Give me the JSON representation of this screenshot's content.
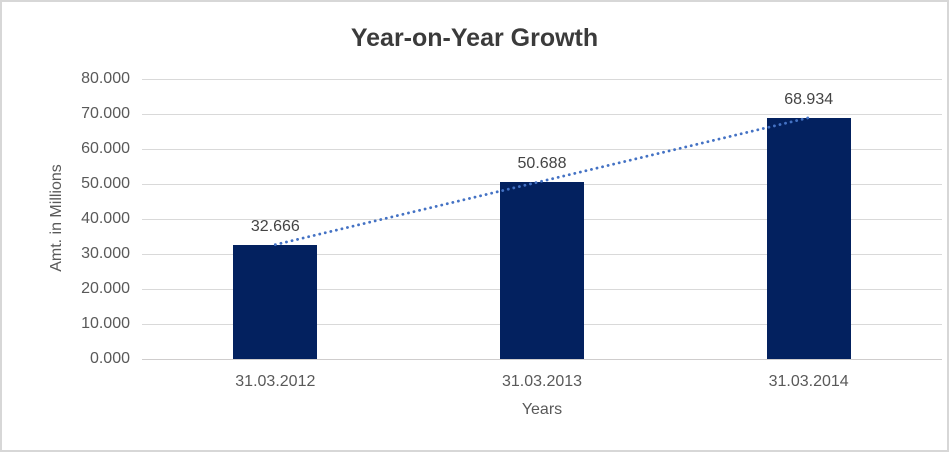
{
  "window": {
    "background_color": "#ffffff",
    "border_color": "#d7d7d7"
  },
  "chart_data": {
    "type": "bar",
    "title": "Year-on-Year Growth",
    "xlabel": "Years",
    "ylabel": "Amt. in Millions",
    "categories": [
      "31.03.2012",
      "31.03.2013",
      "31.03.2014"
    ],
    "values": [
      32.666,
      50.688,
      68.934
    ],
    "value_labels": [
      "32.666",
      "50.688",
      "68.934"
    ],
    "ylim": [
      0,
      80
    ],
    "ytick_values": [
      0,
      10,
      20,
      30,
      40,
      50,
      60,
      70,
      80
    ],
    "ytick_labels": [
      "0.000",
      "10.000",
      "20.000",
      "30.000",
      "40.000",
      "50.000",
      "60.000",
      "70.000",
      "80.000"
    ],
    "grid": true,
    "legend": false,
    "bar_color": "#03215f",
    "trendline": {
      "style": "dotted",
      "color": "#4472c4",
      "from_category": "31.03.2012",
      "from_value": 32.666,
      "to_category": "31.03.2014",
      "to_value": 68.934
    }
  }
}
